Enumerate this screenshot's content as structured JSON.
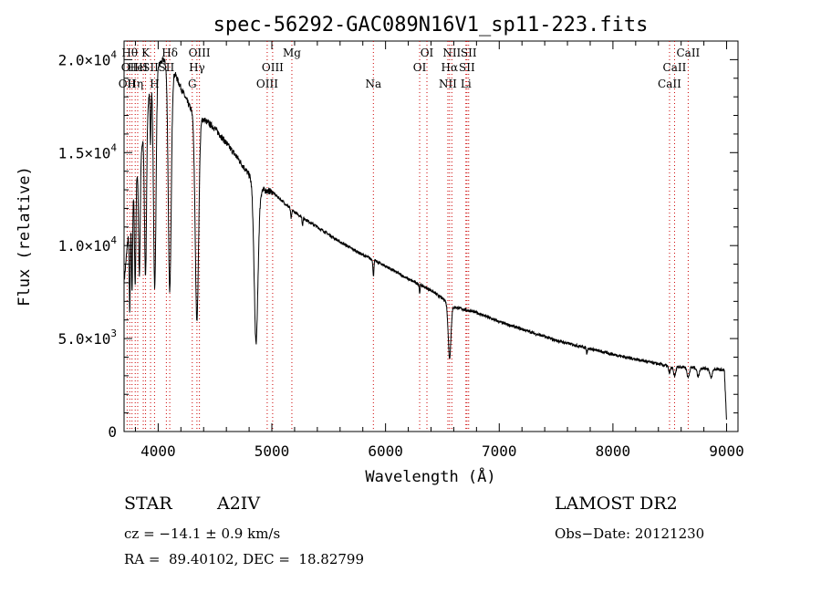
{
  "chart_data": {
    "type": "line",
    "title": "spec-56292-GAC089N16V1_sp11-223.fits",
    "xlabel": "Wavelength (Å)",
    "ylabel": "Flux (relative)",
    "xlim": [
      3700,
      9100
    ],
    "ylim": [
      0,
      21000
    ],
    "x_ticks": [
      4000,
      5000,
      6000,
      7000,
      8000,
      9000
    ],
    "x_tick_labels": [
      "4000",
      "5000",
      "6000",
      "7000",
      "8000",
      "9000"
    ],
    "y_ticks": [
      0,
      5000,
      10000,
      15000,
      20000
    ],
    "y_tick_labels": [
      {
        "mant": "0",
        "exp": ""
      },
      {
        "mant": "5.0×10",
        "exp": "3"
      },
      {
        "mant": "1.0×10",
        "exp": "4"
      },
      {
        "mant": "1.5×10",
        "exp": "4"
      },
      {
        "mant": "2.0×10",
        "exp": "4"
      }
    ],
    "grid": false,
    "line_color": "#000000",
    "marker_color": "#cc0000",
    "continuum": {
      "x": [
        3700,
        3750,
        3800,
        3850,
        3900,
        3950,
        4000,
        4050,
        4100,
        4150,
        4200,
        4250,
        4300,
        4400,
        4500,
        4600,
        4700,
        4800,
        4900,
        5000,
        5200,
        5400,
        5600,
        5800,
        6000,
        6200,
        6400,
        6600,
        6800,
        7000,
        7500,
        8000,
        8500,
        8700,
        8900,
        8980,
        9000
      ],
      "y": [
        8000,
        11500,
        13500,
        15000,
        17500,
        19000,
        19700,
        20000,
        19600,
        19200,
        18500,
        17800,
        17200,
        16800,
        16300,
        15500,
        14700,
        13800,
        13000,
        12900,
        11800,
        11000,
        10200,
        9500,
        8900,
        8200,
        7600,
        6700,
        6400,
        5900,
        4900,
        4150,
        3500,
        3450,
        3350,
        3300,
        500
      ]
    },
    "absorption_lines": [
      {
        "x": 3750,
        "depth": 5000,
        "width": 5
      },
      {
        "x": 3770,
        "depth": 4800,
        "width": 5
      },
      {
        "x": 3798,
        "depth": 5500,
        "width": 6
      },
      {
        "x": 3835,
        "depth": 6200,
        "width": 7
      },
      {
        "x": 3889,
        "depth": 8500,
        "width": 9
      },
      {
        "x": 3933,
        "depth": 3000,
        "width": 4
      },
      {
        "x": 3970,
        "depth": 11500,
        "width": 11
      },
      {
        "x": 4102,
        "depth": 12000,
        "width": 13
      },
      {
        "x": 4341,
        "depth": 11000,
        "width": 15
      },
      {
        "x": 4861,
        "depth": 8500,
        "width": 17
      },
      {
        "x": 5170,
        "depth": 500,
        "width": 5
      },
      {
        "x": 5270,
        "depth": 400,
        "width": 4
      },
      {
        "x": 5893,
        "depth": 900,
        "width": 4
      },
      {
        "x": 6300,
        "depth": 500,
        "width": 3
      },
      {
        "x": 6563,
        "depth": 2900,
        "width": 12
      },
      {
        "x": 7770,
        "depth": 300,
        "width": 4
      },
      {
        "x": 8498,
        "depth": 350,
        "width": 8
      },
      {
        "x": 8542,
        "depth": 500,
        "width": 10
      },
      {
        "x": 8662,
        "depth": 550,
        "width": 10
      },
      {
        "x": 8750,
        "depth": 450,
        "width": 10
      },
      {
        "x": 8863,
        "depth": 500,
        "width": 10
      }
    ],
    "line_markers": [
      {
        "x": 3727,
        "label": "OII",
        "row": 3
      },
      {
        "x": 3750,
        "label": "Hθ",
        "row": 1
      },
      {
        "x": 3770,
        "label": "OIII",
        "row": 2
      },
      {
        "x": 3798,
        "label": "Hη",
        "row": 3
      },
      {
        "x": 3820,
        "label": "HeI",
        "row": 2
      },
      {
        "x": 3869,
        "label": "",
        "row": 0
      },
      {
        "x": 3889,
        "label": "K",
        "row": 1
      },
      {
        "x": 3933,
        "label": "SII",
        "row": 2
      },
      {
        "x": 3968,
        "label": "H",
        "row": 3
      },
      {
        "x": 4072,
        "label": "SII",
        "row": 2
      },
      {
        "x": 4102,
        "label": "Hδ",
        "row": 1
      },
      {
        "x": 4300,
        "label": "G",
        "row": 3
      },
      {
        "x": 4341,
        "label": "Hγ",
        "row": 2
      },
      {
        "x": 4363,
        "label": "OIII",
        "row": 1
      },
      {
        "x": 4959,
        "label": "OIII",
        "row": 3
      },
      {
        "x": 5007,
        "label": "OIII",
        "row": 2
      },
      {
        "x": 5176,
        "label": "Mg",
        "row": 1
      },
      {
        "x": 5893,
        "label": "Na",
        "row": 3
      },
      {
        "x": 6300,
        "label": "OI",
        "row": 2
      },
      {
        "x": 6364,
        "label": "OI",
        "row": 1
      },
      {
        "x": 6548,
        "label": "NII",
        "row": 3
      },
      {
        "x": 6563,
        "label": "Hα",
        "row": 2
      },
      {
        "x": 6583,
        "label": "NII",
        "row": 1
      },
      {
        "x": 6707,
        "label": "Li",
        "row": 3
      },
      {
        "x": 6716,
        "label": "SII",
        "row": 2
      },
      {
        "x": 6731,
        "label": "SII",
        "row": 1
      },
      {
        "x": 8498,
        "label": "CaII",
        "row": 3
      },
      {
        "x": 8542,
        "label": "CaII",
        "row": 2
      },
      {
        "x": 8662,
        "label": "CaII",
        "row": 1
      }
    ]
  },
  "info": {
    "object_class": "STAR",
    "subclass": "A2IV",
    "cz": "cz = −14.1 ± 0.9 km/s",
    "coords": "RA =  89.40102, DEC =  18.82799",
    "survey": "LAMOST DR2",
    "obs_date": "Obs−Date: 20121230"
  }
}
